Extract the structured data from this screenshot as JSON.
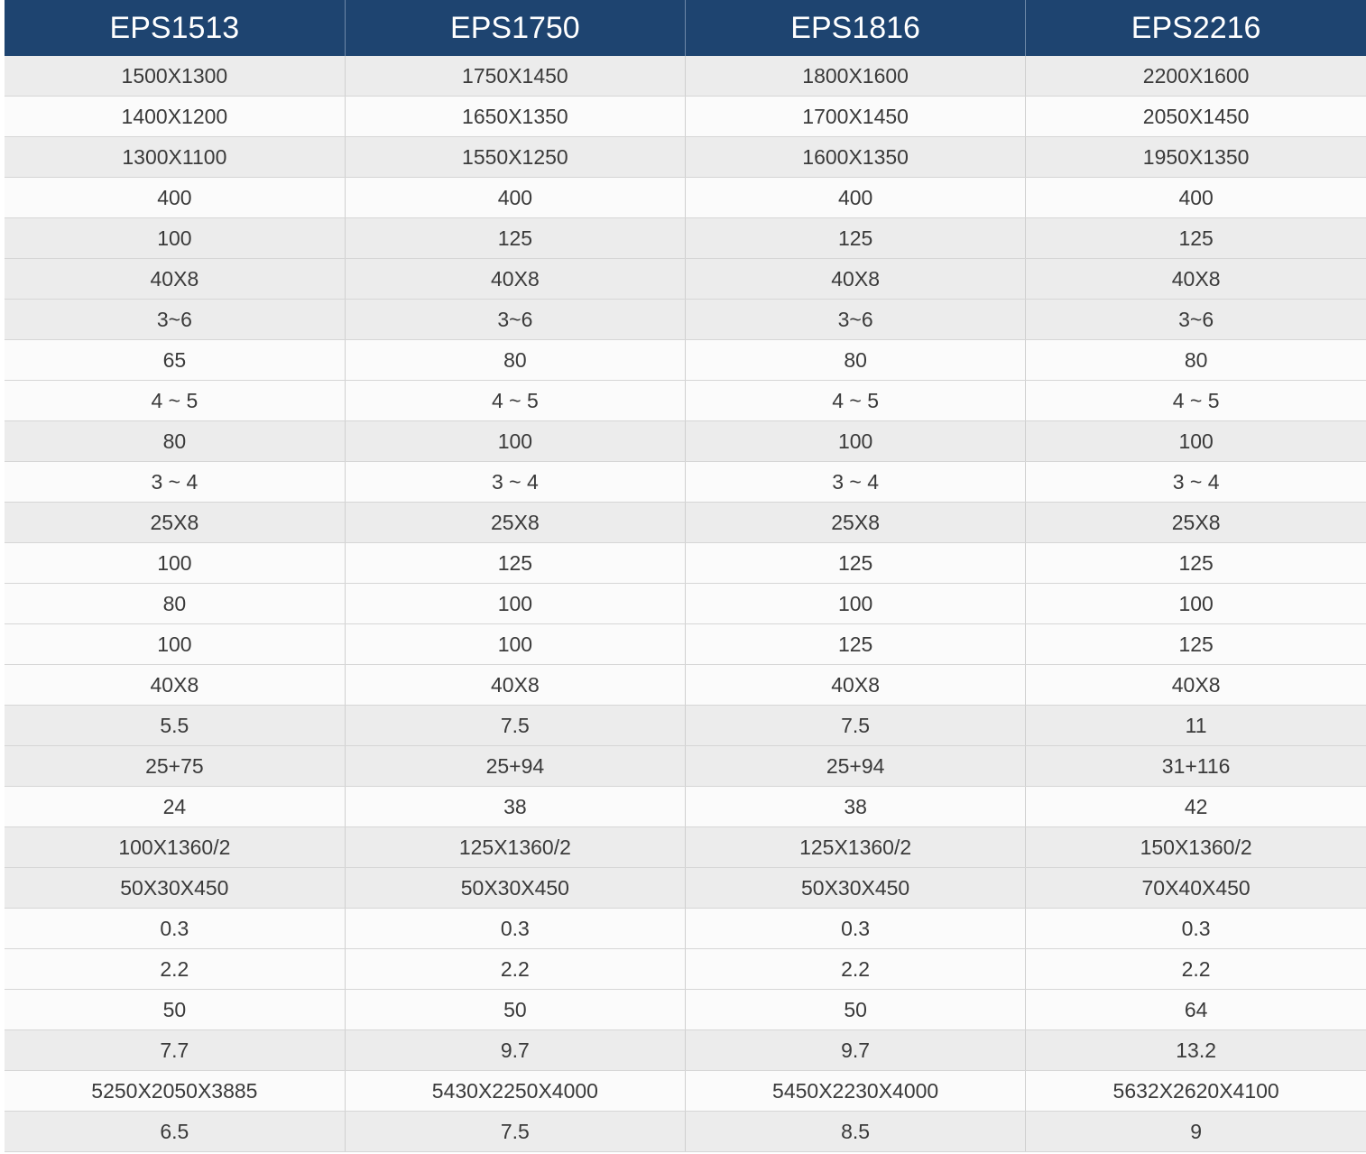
{
  "table": {
    "header": [
      "EPS1513",
      "EPS1750",
      "EPS1816",
      "EPS2216"
    ],
    "rows": [
      [
        "1500X1300",
        "1750X1450",
        "1800X1600",
        "2200X1600"
      ],
      [
        "1400X1200",
        "1650X1350",
        "1700X1450",
        "2050X1450"
      ],
      [
        "1300X1100",
        "1550X1250",
        "1600X1350",
        "1950X1350"
      ],
      [
        "400",
        "400",
        "400",
        "400"
      ],
      [
        "100",
        "125",
        "125",
        "125"
      ],
      [
        "40X8",
        "40X8",
        "40X8",
        "40X8"
      ],
      [
        "3~6",
        "3~6",
        "3~6",
        "3~6"
      ],
      [
        "65",
        "80",
        "80",
        "80"
      ],
      [
        "4 ~ 5",
        "4 ~ 5",
        "4 ~ 5",
        "4 ~ 5"
      ],
      [
        "80",
        "100",
        "100",
        "100"
      ],
      [
        "3 ~ 4",
        "3 ~ 4",
        "3 ~ 4",
        "3 ~ 4"
      ],
      [
        "25X8",
        "25X8",
        "25X8",
        "25X8"
      ],
      [
        "100",
        "125",
        "125",
        "125"
      ],
      [
        "80",
        "100",
        "100",
        "100"
      ],
      [
        "100",
        "100",
        "125",
        "125"
      ],
      [
        "40X8",
        "40X8",
        "40X8",
        "40X8"
      ],
      [
        "5.5",
        "7.5",
        "7.5",
        "11"
      ],
      [
        "25+75",
        "25+94",
        "25+94",
        "31+116"
      ],
      [
        "24",
        "38",
        "38",
        "42"
      ],
      [
        "100X1360/2",
        "125X1360/2",
        "125X1360/2",
        "150X1360/2"
      ],
      [
        "50X30X450",
        "50X30X450",
        "50X30X450",
        "70X40X450"
      ],
      [
        "0.3",
        "0.3",
        "0.3",
        "0.3"
      ],
      [
        "2.2",
        "2.2",
        "2.2",
        "2.2"
      ],
      [
        "50",
        "50",
        "50",
        "64"
      ],
      [
        "7.7",
        "9.7",
        "9.7",
        "13.2"
      ],
      [
        "5250X2050X3885",
        "5430X2250X4000",
        "5450X2230X4000",
        "5632X2620X4100"
      ],
      [
        "6.5",
        "7.5",
        "8.5",
        "9"
      ]
    ]
  }
}
